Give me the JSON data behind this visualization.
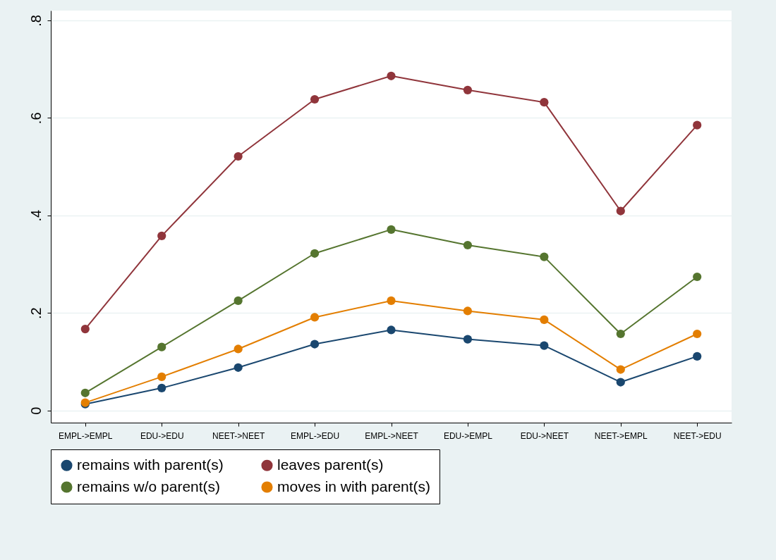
{
  "chart_data": {
    "type": "line",
    "categories": [
      "EMPL->EMPL",
      "EDU->EDU",
      "NEET->NEET",
      "EMPL->EDU",
      "EMPL->NEET",
      "EDU->EMPL",
      "EDU->NEET",
      "NEET->EMPL",
      "NEET->EDU"
    ],
    "series": [
      {
        "name": "remains with parent(s)",
        "color": "#1a476f",
        "values": [
          0.013,
          0.046,
          0.088,
          0.136,
          0.165,
          0.146,
          0.133,
          0.058,
          0.111
        ]
      },
      {
        "name": "leaves parent(s)",
        "color": "#90353b",
        "values": [
          0.167,
          0.358,
          0.521,
          0.638,
          0.686,
          0.657,
          0.632,
          0.409,
          0.585
        ]
      },
      {
        "name": "remains w/o parent(s)",
        "color": "#55752f",
        "values": [
          0.036,
          0.13,
          0.225,
          0.322,
          0.371,
          0.339,
          0.315,
          0.157,
          0.274
        ]
      },
      {
        "name": "moves in with parent(s)",
        "color": "#e37e00",
        "values": [
          0.016,
          0.069,
          0.126,
          0.191,
          0.225,
          0.204,
          0.186,
          0.084,
          0.157
        ]
      }
    ],
    "ylim": [
      -0.025,
      0.82
    ],
    "yticks": [
      {
        "value": 0,
        "label": "0"
      },
      {
        "value": 0.2,
        "label": ".2"
      },
      {
        "value": 0.4,
        "label": ".4"
      },
      {
        "value": 0.6,
        "label": ".6"
      },
      {
        "value": 0.8,
        "label": ".8"
      }
    ],
    "grid": "y",
    "legend": "bottom",
    "marker": "circle",
    "line_style": "solid"
  }
}
